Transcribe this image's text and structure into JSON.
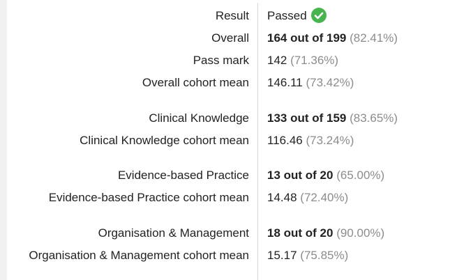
{
  "top_fragment": "¸",
  "rows": [
    {
      "label": "Result",
      "value": "Passed",
      "pct": ""
    },
    {
      "label": "Overall",
      "value": "164 out of 199",
      "pct": "(82.41%)"
    },
    {
      "label": "Pass mark",
      "value": "142",
      "pct": "(71.36%)"
    },
    {
      "label": "Overall cohort mean",
      "value": "146.11",
      "pct": "(73.42%)"
    },
    {
      "label": "Clinical Knowledge",
      "value": "133 out of 159",
      "pct": "(83.65%)"
    },
    {
      "label": "Clinical Knowledge cohort mean",
      "value": "116.46",
      "pct": "(73.24%)"
    },
    {
      "label": "Evidence-based Practice",
      "value": "13 out of 20",
      "pct": "(65.00%)"
    },
    {
      "label": "Evidence-based Practice cohort mean",
      "value": "14.48",
      "pct": "(72.40%)"
    },
    {
      "label": "Organisation & Management",
      "value": "18 out of 20",
      "pct": "(90.00%)"
    },
    {
      "label": "Organisation & Management cohort mean",
      "value": "15.17",
      "pct": "(75.85%)"
    }
  ],
  "icons": {
    "result_status": "check-circle-icon"
  },
  "colors": {
    "pass_green": "#47b44f",
    "percent_gray": "#8c8c8c",
    "divider": "#d9d9d9"
  }
}
